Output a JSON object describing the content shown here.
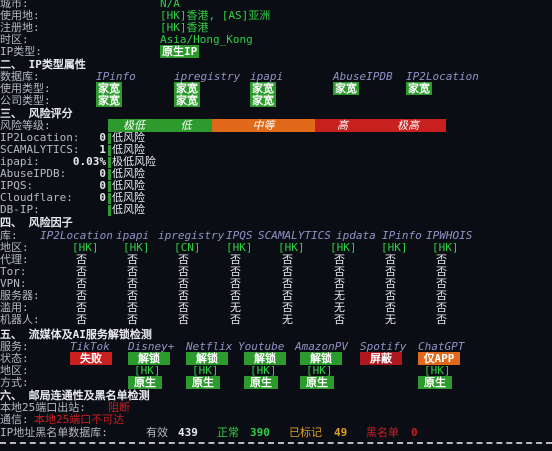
{
  "basic": {
    "city_label": "城市:",
    "city_value": "N/A",
    "usage_label": "使用地:",
    "usage_value": "[HK]香港, [AS]亚洲",
    "reg_label": "注册地:",
    "reg_value": "[HK]香港",
    "tz_label": "时区:",
    "tz_value": "Asia/Hong_Kong",
    "type_label": "IP类型:",
    "type_value": "原生IP"
  },
  "section2": {
    "title": "二、 IP类型属性",
    "db_label": "数据库:",
    "usage_type_label": "使用类型:",
    "company_type_label": "公司类型:",
    "sources": [
      "IPinfo",
      "ipregistry",
      "ipapi",
      "AbuseIPDB",
      "IP2Location"
    ],
    "usage_types": [
      "家宽",
      "家宽",
      "家宽",
      "家宽",
      "家宽"
    ],
    "company_types": [
      "家宽",
      "家宽",
      "家宽"
    ]
  },
  "section3": {
    "title": "三、 风险评分",
    "level_label": "风险等级:",
    "scale": [
      "极低",
      "低",
      "中等",
      "高",
      "极高"
    ],
    "scale_colors": [
      "#2c9a2c",
      "#2c9a2c",
      "#e06a1a",
      "#c81f1f",
      "#c81f1f"
    ],
    "rows": [
      {
        "label": "IP2Location:",
        "score": "0",
        "risk": "低风险"
      },
      {
        "label": "SCAMALYTICS:",
        "score": "1",
        "risk": "低风险"
      },
      {
        "label": "ipapi:",
        "score": "0.03%",
        "risk": "极低风险"
      },
      {
        "label": "AbuseIPDB:",
        "score": "0",
        "risk": "低风险"
      },
      {
        "label": "IPQS:",
        "score": "0",
        "risk": "低风险"
      },
      {
        "label": "Cloudflare:",
        "score": "0",
        "risk": "低风险"
      },
      {
        "label": "DB-IP:",
        "score": "",
        "risk": "低风险"
      }
    ]
  },
  "section4": {
    "title": "四、 风险因子",
    "db_label": "库:",
    "sources": [
      "IP2Location",
      "ipapi",
      "ipregistry",
      "IPQS",
      "SCAMALYTICS",
      "ipdata",
      "IPinfo",
      "IPWHOIS"
    ],
    "row_labels": [
      "地区:",
      "代理:",
      "Tor:",
      "VPN:",
      "服务器:",
      "滥用:",
      "机器人:"
    ],
    "regions": [
      "[HK]",
      "[HK]",
      "[CN]",
      "[HK]",
      "[HK]",
      "[HK]",
      "[HK]",
      "[HK]"
    ],
    "values": [
      [
        "否",
        "否",
        "否",
        "否",
        "否",
        "否",
        "否",
        "否"
      ],
      [
        "否",
        "否",
        "否",
        "否",
        "否",
        "否",
        "否",
        "否"
      ],
      [
        "否",
        "否",
        "否",
        "否",
        "否",
        "否",
        "否",
        "否"
      ],
      [
        "否",
        "否",
        "否",
        "否",
        "否",
        "无",
        "否",
        "否"
      ],
      [
        "否",
        "否",
        "否",
        "无",
        "否",
        "无",
        "否",
        "否"
      ],
      [
        "否",
        "否",
        "否",
        "否",
        "无",
        "否",
        "无",
        "否"
      ]
    ]
  },
  "section5": {
    "title": "五、 流媒体及AI服务解锁检测",
    "service_label": "服务:",
    "status_label": "状态:",
    "region_label": "地区:",
    "method_label": "方式:",
    "services": [
      "TikTok",
      "Disney+",
      "Netflix",
      "Youtube",
      "AmazonPV",
      "Spotify",
      "ChatGPT"
    ],
    "status": [
      "失败",
      "解锁",
      "解锁",
      "解锁",
      "解锁",
      "屏蔽",
      "仅APP"
    ],
    "status_colors": [
      "#c81f1f",
      "#2c9a2c",
      "#2c9a2c",
      "#2c9a2c",
      "#2c9a2c",
      "#b0181f",
      "#e06a1a"
    ],
    "regions": [
      "",
      "[HK]",
      "[HK]",
      "[HK]",
      "[HK]",
      "",
      "[HK]"
    ],
    "methods": [
      "",
      "原生",
      "原生",
      "原生",
      "原生",
      "",
      "原生"
    ]
  },
  "section6": {
    "title": "六、 邮局连通性及黑名单检测",
    "port_label": "本地25端口出站:",
    "port_value": "阻断",
    "comm_label": "通信:",
    "comm_value": "本地25端口不可达",
    "blacklist_label": "IP地址黑名单数据库:",
    "valid_label": "有效",
    "valid_value": "439",
    "normal_label": "正常",
    "normal_value": "390",
    "marked_label": "已标记",
    "marked_value": "49",
    "black_label": "黑名单",
    "black_value": "0"
  }
}
